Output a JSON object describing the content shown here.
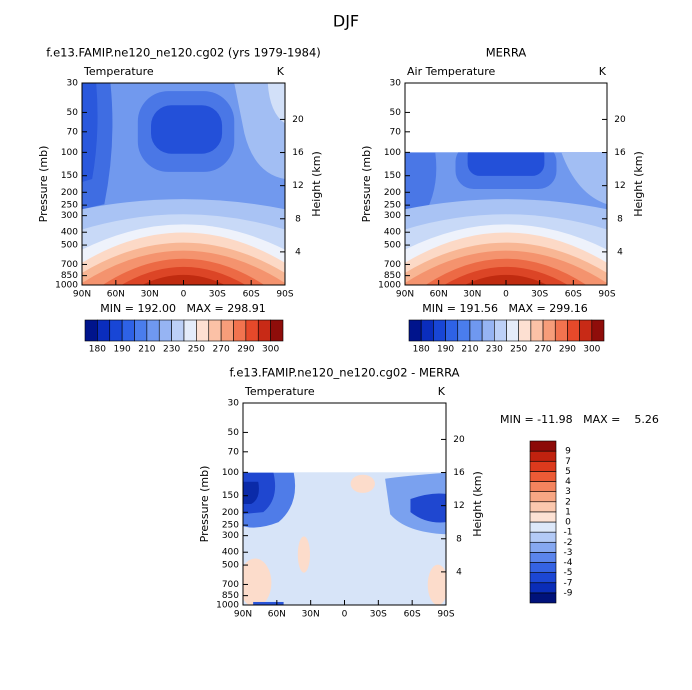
{
  "title": "DJF",
  "chart_data": [
    {
      "type": "contour",
      "title": "f.e13.FAMIP.ne120_ne120.cg02 (yrs 1979-1984)",
      "variable": "Temperature",
      "units": "K",
      "ylabel": "Pressure (mb)",
      "y2label": "Height (km)",
      "stats": "MIN = 192.00   MAX = 298.91",
      "xlim": [
        90,
        -90
      ],
      "xticks": [
        {
          "value": 90,
          "label": "90N"
        },
        {
          "value": 60,
          "label": "60N"
        },
        {
          "value": 30,
          "label": "30N"
        },
        0,
        {
          "value": -30,
          "label": "30S"
        },
        {
          "value": -60,
          "label": "60S"
        },
        {
          "value": -90,
          "label": "90S"
        }
      ],
      "ylim": [
        1000,
        30
      ],
      "log_scale": true,
      "yticks": [
        30,
        50,
        70,
        100,
        150,
        200,
        250,
        300,
        400,
        500,
        700,
        850,
        1000
      ],
      "y2lim": [
        0,
        24.4
      ],
      "y2ticks": [
        4,
        8,
        12,
        16,
        20
      ],
      "colorbar_orientation": "horizontal",
      "colorbar_ticks": [
        180,
        null,
        190,
        null,
        210,
        null,
        230,
        null,
        250,
        null,
        270,
        null,
        290,
        null,
        300
      ],
      "colorbar_colors": [
        "#00148c",
        "#0a2dbd",
        "#1846d6",
        "#2e62e6",
        "#4a7ded",
        "#6f98f0",
        "#96b4f3",
        "#bcd0f7",
        "#e4ecfa",
        "#fde0d2",
        "#fbc1a6",
        "#f79d7a",
        "#f2734f",
        "#e6492a",
        "#c82a16",
        "#8f0d0a"
      ]
    },
    {
      "type": "contour",
      "title": "MERRA",
      "variable": "Air Temperature",
      "units": "K",
      "ylabel": "Pressure (mb)",
      "y2label": "Height (km)",
      "stats": "MIN = 191.56   MAX = 299.16",
      "xlim": [
        90,
        -90
      ],
      "xticks": [
        {
          "value": 90,
          "label": "90N"
        },
        {
          "value": 60,
          "label": "60N"
        },
        {
          "value": 30,
          "label": "30N"
        },
        0,
        {
          "value": -30,
          "label": "30S"
        },
        {
          "value": -60,
          "label": "60S"
        },
        {
          "value": -90,
          "label": "90S"
        }
      ],
      "ylim": [
        1000,
        30
      ],
      "log_scale": true,
      "yticks": [
        30,
        50,
        70,
        100,
        150,
        200,
        250,
        300,
        400,
        500,
        700,
        850,
        1000
      ],
      "y2lim": [
        0,
        24.4
      ],
      "y2ticks": [
        4,
        8,
        12,
        16,
        20
      ],
      "colorbar_orientation": "horizontal",
      "colorbar_ticks": [
        180,
        null,
        190,
        null,
        210,
        null,
        230,
        null,
        250,
        null,
        270,
        null,
        290,
        null,
        300
      ],
      "colorbar_colors": [
        "#00148c",
        "#0a2dbd",
        "#1846d6",
        "#2e62e6",
        "#4a7ded",
        "#6f98f0",
        "#96b4f3",
        "#bcd0f7",
        "#e4ecfa",
        "#fde0d2",
        "#fbc1a6",
        "#f79d7a",
        "#f2734f",
        "#e6492a",
        "#c82a16",
        "#8f0d0a"
      ]
    },
    {
      "type": "contour",
      "title": "f.e13.FAMIP.ne120_ne120.cg02 - MERRA",
      "variable": "Temperature",
      "units": "K",
      "ylabel": "Pressure (mb)",
      "y2label": "Height (km)",
      "stats": "MIN = -11.98   MAX =    5.26",
      "xlim": [
        90,
        -90
      ],
      "xticks": [
        {
          "value": 90,
          "label": "90N"
        },
        {
          "value": 60,
          "label": "60N"
        },
        {
          "value": 30,
          "label": "30N"
        },
        0,
        {
          "value": -30,
          "label": "30S"
        },
        {
          "value": -60,
          "label": "60S"
        },
        {
          "value": -90,
          "label": "90S"
        }
      ],
      "ylim": [
        1000,
        30
      ],
      "log_scale": true,
      "yticks": [
        30,
        50,
        70,
        100,
        150,
        200,
        250,
        300,
        400,
        500,
        700,
        850,
        1000
      ],
      "y2lim": [
        0,
        24.4
      ],
      "y2ticks": [
        4,
        8,
        12,
        16,
        20
      ],
      "colorbar_orientation": "vertical",
      "colorbar_ticks": [
        -9,
        -7,
        -5,
        -4,
        -3,
        -2,
        -1,
        0,
        1,
        2,
        3,
        4,
        5,
        7,
        9
      ],
      "colorbar_colors": [
        "#00127a",
        "#0a2db8",
        "#1c47d4",
        "#3563e3",
        "#5b85ec",
        "#86a8f1",
        "#b3caf6",
        "#dde8f9",
        "#fde2d4",
        "#fbc8ae",
        "#f8a784",
        "#f4845e",
        "#ec5b36",
        "#dc3a1d",
        "#c0220f",
        "#8c0a08"
      ]
    }
  ]
}
